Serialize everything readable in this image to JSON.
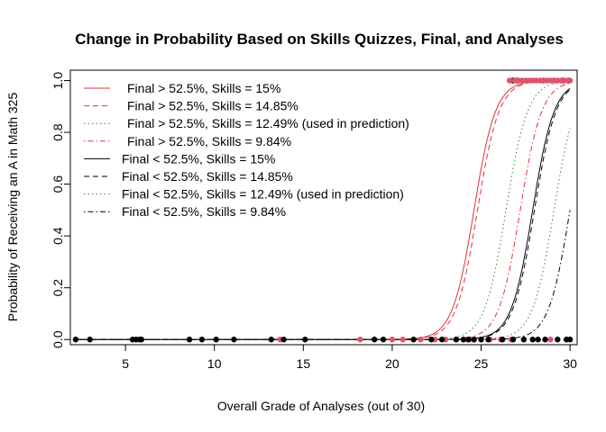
{
  "chart_data": {
    "type": "line",
    "title": "Change in Probability Based on Skills Quizzes, Final, and Analyses",
    "xlabel": "Overall Grade of Analyses (out of 30)",
    "ylabel": "Probability of Receiving an A in Math 325",
    "xlim": [
      1.9,
      30.4
    ],
    "ylim": [
      -0.02,
      1.04
    ],
    "xticks": [
      "5",
      "10",
      "15",
      "20",
      "25",
      "30"
    ],
    "yticks": [
      "0.0",
      "0.2",
      "0.4",
      "0.6",
      "0.8",
      "1.0"
    ],
    "grid": false,
    "legend_position": "top-left",
    "colors": {
      "red": "#DF536B",
      "black": "#000000",
      "green": "#2E8B2E",
      "red_line": "#E0303C"
    },
    "series": [
      {
        "name": "Final > 52.5%, Skills = 15%",
        "color": "red_line",
        "dash": "solid",
        "midpoint": 24.6,
        "steepness": 1.65
      },
      {
        "name": "Final > 52.5%, Skills = 14.85%",
        "color": "red_line",
        "dash": "dashed",
        "midpoint": 24.8,
        "steepness": 1.65
      },
      {
        "name": "Final > 52.5%, Skills = 12.49% (used in prediction)",
        "color": "green",
        "dash": "dotted",
        "midpoint": 26.4,
        "steepness": 1.65
      },
      {
        "name": "Final > 52.5%, Skills = 9.84%",
        "color": "red_line",
        "dash": "dashdot",
        "midpoint": 27.2,
        "steepness": 1.65
      },
      {
        "name": "Final < 52.5%, Skills = 15%",
        "color": "black",
        "dash": "solid",
        "midpoint": 27.9,
        "steepness": 1.65
      },
      {
        "name": "Final < 52.5%, Skills = 14.85%",
        "color": "black",
        "dash": "dashed",
        "midpoint": 28.0,
        "steepness": 1.65
      },
      {
        "name": "Final < 52.5%, Skills = 12.49% (used in prediction)",
        "color": "green",
        "dash": "dotted",
        "midpoint": 29.1,
        "steepness": 1.65
      },
      {
        "name": "Final < 52.5%, Skills = 9.84%",
        "color": "black",
        "dash": "dashdot",
        "midpoint": 30.0,
        "steepness": 1.65
      }
    ],
    "points": {
      "black_y0": [
        2.2,
        3.0,
        5.4,
        5.6,
        5.8,
        5.9,
        8.6,
        9.3,
        10.1,
        11.1,
        13.2,
        13.9,
        15.1,
        19.0,
        19.5,
        21.2,
        22.2,
        22.8,
        23.6,
        24.0,
        24.3,
        24.6,
        25.0,
        25.4,
        26.2,
        26.8,
        27.4,
        27.9,
        28.2,
        28.6,
        29.3,
        29.8,
        30.0
      ],
      "red_y0": [
        13.7,
        18.2,
        20.0,
        20.6,
        21.6,
        22.4,
        23.0,
        23.6,
        24.2,
        24.6,
        25.0,
        25.5,
        26.1,
        26.7,
        27.4,
        28.9
      ],
      "black_y1": [
        26.8,
        27.0,
        28.5,
        29.1,
        29.6,
        29.9
      ],
      "red_y1": [
        26.6,
        26.9,
        27.1,
        27.3,
        27.5,
        27.7,
        27.9,
        28.1,
        28.3,
        28.5,
        28.7,
        28.9,
        29.1,
        29.3,
        29.5,
        29.7,
        29.9,
        30.0
      ]
    }
  }
}
